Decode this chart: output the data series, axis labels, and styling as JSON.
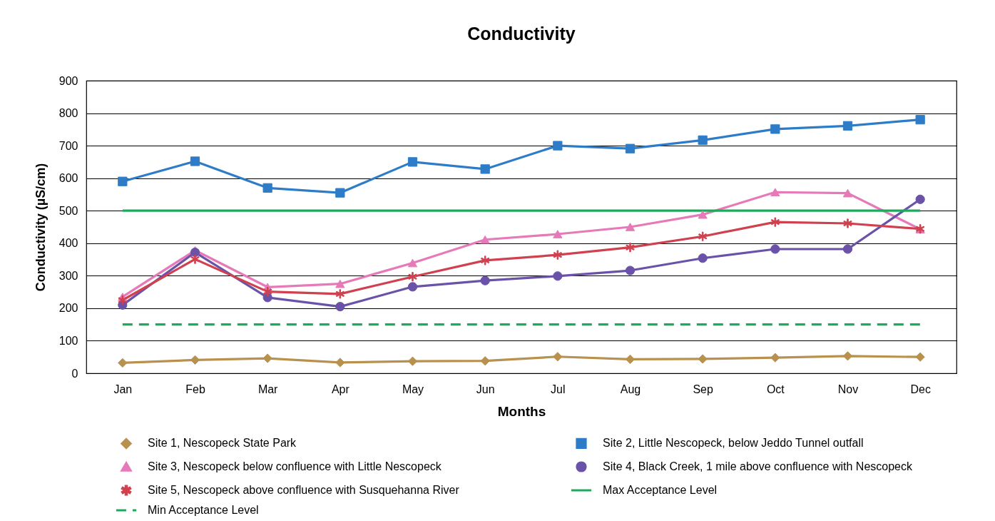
{
  "chart_data": {
    "type": "line",
    "title": "Conductivity",
    "xlabel": "Months",
    "ylabel": "Conductivity (µS/cm)",
    "categories": [
      "Jan",
      "Feb",
      "Mar",
      "Apr",
      "May",
      "Jun",
      "Jul",
      "Aug",
      "Sep",
      "Oct",
      "Nov",
      "Dec"
    ],
    "ylim": [
      0,
      900
    ],
    "yticks": [
      0,
      100,
      200,
      300,
      400,
      500,
      600,
      700,
      800,
      900
    ],
    "grid": "y",
    "legend": "bottom",
    "series": [
      {
        "name": "Site 1, Nescopeck State Park",
        "color": "#b8914f",
        "marker": "diamond",
        "values": [
          32,
          41,
          46,
          33,
          37,
          38,
          51,
          43,
          44,
          48,
          53,
          50
        ]
      },
      {
        "name": "Site 2, Little Nescopeck, below Jeddo Tunnel outfall",
        "color": "#2e7cc8",
        "marker": "square",
        "values": [
          590,
          652,
          570,
          555,
          650,
          628,
          700,
          691,
          717,
          751,
          761,
          780
        ]
      },
      {
        "name": "Site 3, Nescopeck below confluence with Little Nescopeck",
        "color": "#e67ab8",
        "marker": "triangle",
        "values": [
          235,
          378,
          265,
          275,
          339,
          411,
          428,
          450,
          488,
          557,
          554,
          443
        ]
      },
      {
        "name": "Site 4, Black Creek, 1 mile above confluence with Nescopeck",
        "color": "#6a52a8",
        "marker": "circle",
        "values": [
          210,
          372,
          233,
          205,
          266,
          285,
          299,
          316,
          354,
          382,
          382,
          535
        ]
      },
      {
        "name": "Site 5, Nescopeck above confluence with Susquehanna River",
        "color": "#d0414f",
        "marker": "star",
        "values": [
          225,
          351,
          251,
          244,
          297,
          347,
          364,
          387,
          421,
          465,
          461,
          444
        ]
      },
      {
        "name": "Max Acceptance Level",
        "color": "#1daa5c",
        "marker": "none",
        "values": [
          500,
          500,
          500,
          500,
          500,
          500,
          500,
          500,
          500,
          500,
          500,
          500
        ]
      },
      {
        "name": "Min Acceptance Level",
        "color": "#1daa5c",
        "marker": "none",
        "line_style": "dashed",
        "values": [
          150,
          150,
          150,
          150,
          150,
          150,
          150,
          150,
          150,
          150,
          150,
          150
        ]
      }
    ]
  }
}
